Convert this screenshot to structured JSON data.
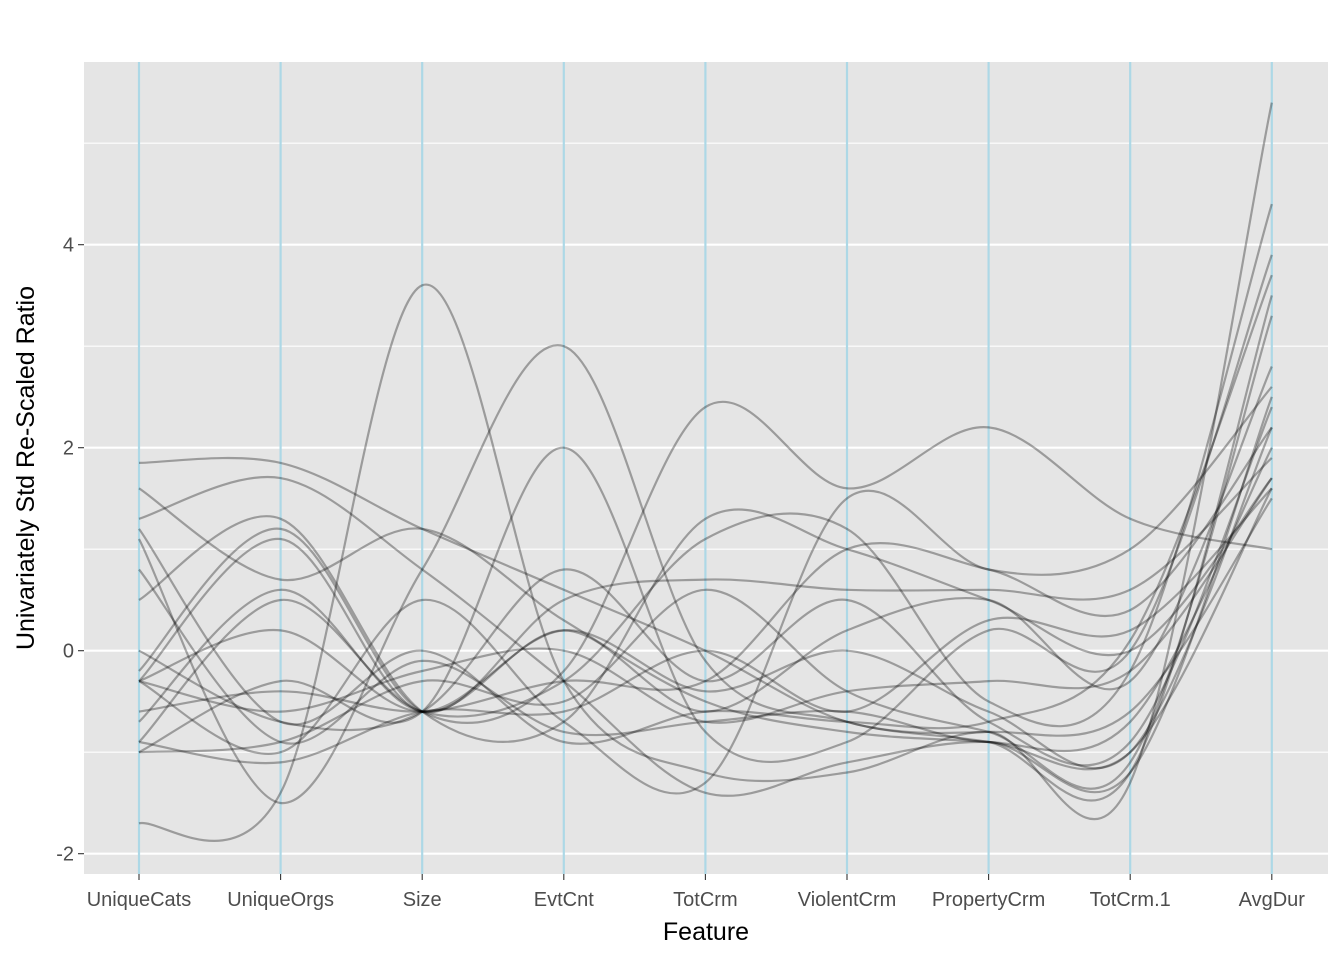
{
  "chart_data": {
    "type": "line",
    "title": "",
    "xlabel": "Feature",
    "ylabel": "Univariately Std Re-Scaled Ratio",
    "categories": [
      "UniqueCats",
      "UniqueOrgs",
      "Size",
      "EvtCnt",
      "TotCrm",
      "ViolentCrm",
      "PropertyCrm",
      "TotCrm.1",
      "AvgDur"
    ],
    "ylim": [
      -2.2,
      5.8
    ],
    "yticks": [
      -2,
      0,
      2,
      4
    ],
    "grid": true,
    "legend": "none",
    "colors": {
      "panel": "#E5E5E5",
      "grid": "#FFFFFF",
      "feature_lines": "#ADD8E6",
      "series": "#000000"
    },
    "series": [
      {
        "values": [
          1.85,
          1.85,
          1.2,
          0.6,
          0.0,
          -0.7,
          -0.8,
          -0.6,
          1.5
        ]
      },
      {
        "values": [
          1.6,
          0.7,
          1.2,
          0.3,
          -0.5,
          -0.8,
          -0.9,
          -1.0,
          1.6
        ]
      },
      {
        "values": [
          1.3,
          1.7,
          0.8,
          -0.3,
          -1.4,
          -1.1,
          -0.9,
          -1.2,
          2.5
        ]
      },
      {
        "values": [
          0.5,
          1.3,
          -0.6,
          -0.7,
          1.3,
          1.0,
          0.5,
          0.0,
          1.7
        ]
      },
      {
        "values": [
          -0.2,
          1.2,
          -0.6,
          -0.2,
          2.4,
          1.6,
          2.2,
          1.3,
          1.0
        ]
      },
      {
        "values": [
          -0.3,
          1.1,
          -0.6,
          0.5,
          0.7,
          0.6,
          0.6,
          0.6,
          1.9
        ]
      },
      {
        "values": [
          -0.7,
          0.6,
          -0.6,
          0.2,
          -0.6,
          0.2,
          0.5,
          -0.3,
          2.8
        ]
      },
      {
        "values": [
          -0.9,
          0.5,
          -0.6,
          -0.3,
          1.1,
          1.2,
          -0.5,
          -0.2,
          4.4
        ]
      },
      {
        "values": [
          -1.0,
          -0.3,
          -0.6,
          2.0,
          -0.8,
          -0.9,
          0.2,
          0.0,
          3.9
        ]
      },
      {
        "values": [
          -1.7,
          -1.4,
          3.6,
          -0.3,
          -1.2,
          -1.2,
          -0.8,
          -1.3,
          5.4
        ]
      },
      {
        "values": [
          1.1,
          -1.5,
          0.8,
          3.0,
          -0.1,
          -0.7,
          -0.9,
          -1.2,
          3.5
        ]
      },
      {
        "values": [
          -0.3,
          -1.0,
          0.5,
          -0.7,
          -1.3,
          1.5,
          0.8,
          1.0,
          2.6
        ]
      },
      {
        "values": [
          0.0,
          -0.7,
          -0.6,
          0.8,
          -0.3,
          0.5,
          -0.7,
          -0.9,
          2.4
        ]
      },
      {
        "values": [
          -0.6,
          -0.4,
          -0.6,
          -0.3,
          -0.3,
          1.0,
          0.8,
          0.4,
          2.2
        ]
      },
      {
        "values": [
          -0.9,
          -1.1,
          -0.6,
          -0.6,
          0.0,
          -0.6,
          0.3,
          0.2,
          1.6
        ]
      },
      {
        "values": [
          -1.0,
          -0.9,
          -0.3,
          -0.5,
          0.6,
          -0.4,
          -0.8,
          -1.1,
          3.3
        ]
      },
      {
        "values": [
          0.8,
          -0.9,
          -0.1,
          -0.8,
          -0.7,
          -0.6,
          -0.9,
          -0.7,
          2.0
        ]
      },
      {
        "values": [
          1.2,
          -0.7,
          0.0,
          -0.9,
          -0.6,
          -0.7,
          -0.7,
          0.1,
          3.7
        ]
      },
      {
        "values": [
          -0.3,
          0.2,
          -0.6,
          0.2,
          -0.4,
          0.0,
          -0.6,
          -1.0,
          2.2
        ]
      },
      {
        "values": [
          -0.3,
          -0.6,
          -0.2,
          0.0,
          -0.7,
          -0.4,
          -0.3,
          -0.2,
          1.7
        ]
      }
    ]
  }
}
